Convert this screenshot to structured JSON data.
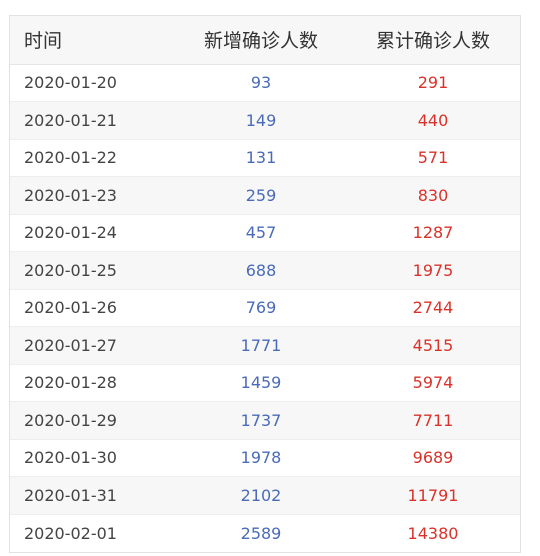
{
  "table": {
    "headers": {
      "date": "时间",
      "new_confirmed": "新增确诊人数",
      "total_confirmed": "累计确诊人数"
    },
    "rows": [
      {
        "date": "2020-01-20",
        "new": "93",
        "total": "291"
      },
      {
        "date": "2020-01-21",
        "new": "149",
        "total": "440"
      },
      {
        "date": "2020-01-22",
        "new": "131",
        "total": "571"
      },
      {
        "date": "2020-01-23",
        "new": "259",
        "total": "830"
      },
      {
        "date": "2020-01-24",
        "new": "457",
        "total": "1287"
      },
      {
        "date": "2020-01-25",
        "new": "688",
        "total": "1975"
      },
      {
        "date": "2020-01-26",
        "new": "769",
        "total": "2744"
      },
      {
        "date": "2020-01-27",
        "new": "1771",
        "total": "4515"
      },
      {
        "date": "2020-01-28",
        "new": "1459",
        "total": "5974"
      },
      {
        "date": "2020-01-29",
        "new": "1737",
        "total": "7711"
      },
      {
        "date": "2020-01-30",
        "new": "1978",
        "total": "9689"
      },
      {
        "date": "2020-01-31",
        "new": "2102",
        "total": "11791"
      },
      {
        "date": "2020-02-01",
        "new": "2589",
        "total": "14380"
      }
    ]
  },
  "colors": {
    "new_text": "#4a6bb8",
    "total_text": "#d9322a",
    "date_text": "#444444",
    "stripe": "#f7f7f7"
  }
}
